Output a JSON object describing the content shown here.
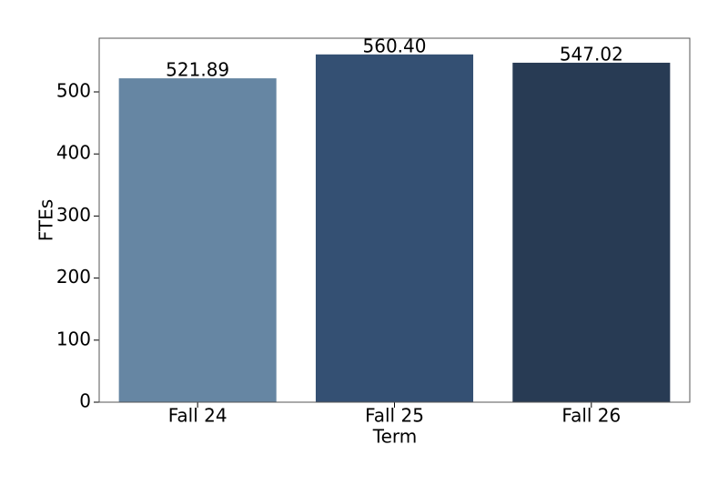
{
  "chart_data": {
    "type": "bar",
    "x_label": "Term",
    "y_label": "FTEs",
    "categories": [
      "Fall 24",
      "Fall 25",
      "Fall 26"
    ],
    "values": [
      521.89,
      560.4,
      547.02
    ],
    "value_labels": [
      "521.89",
      "560.40",
      "547.02"
    ],
    "colors": [
      "#6686a3",
      "#345073",
      "#283b54"
    ],
    "ylim": [
      0,
      586.5
    ],
    "yticks": [
      0,
      100,
      200,
      300,
      400,
      500
    ]
  }
}
